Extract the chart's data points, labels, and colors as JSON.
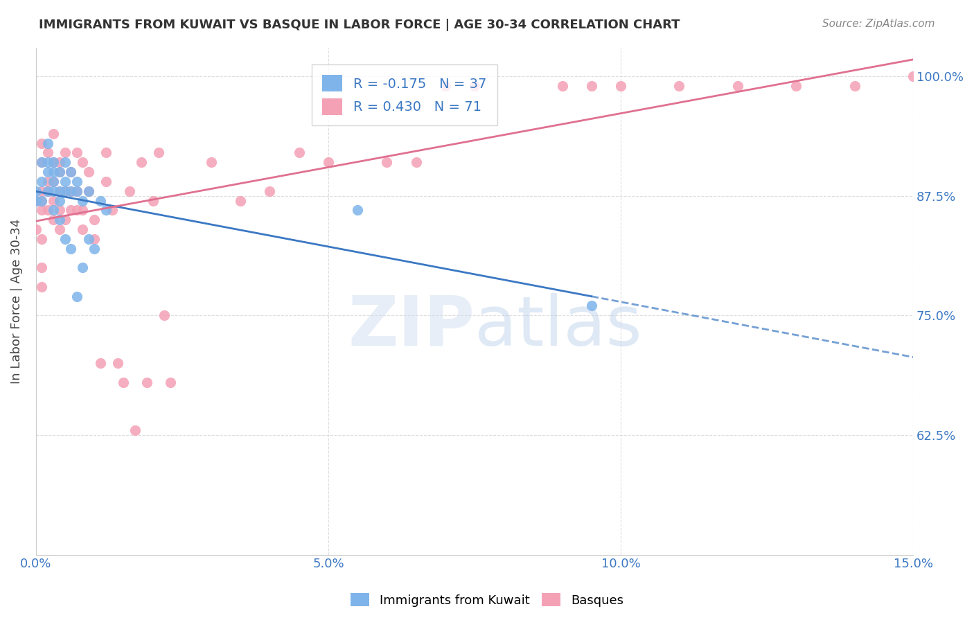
{
  "title": "IMMIGRANTS FROM KUWAIT VS BASQUE IN LABOR FORCE | AGE 30-34 CORRELATION CHART",
  "source": "Source: ZipAtlas.com",
  "ylabel": "In Labor Force | Age 30-34",
  "xlabel": "",
  "xlim": [
    0.0,
    0.15
  ],
  "ylim": [
    0.5,
    1.03
  ],
  "xticks": [
    0.0,
    0.05,
    0.1,
    0.15
  ],
  "xticklabels": [
    "0.0%",
    "5.0%",
    "10.0%",
    "15.0%"
  ],
  "yticks": [
    0.625,
    0.75,
    0.875,
    1.0
  ],
  "yticklabels": [
    "62.5%",
    "75.0%",
    "87.5%",
    "100.0%"
  ],
  "grid_color": "#dddddd",
  "background_color": "#ffffff",
  "kuwait_color": "#7eb4ea",
  "basque_color": "#f4a0b5",
  "kuwait_line_color": "#3B78C3",
  "basque_line_color": "#E07090",
  "kuwait_R": -0.175,
  "kuwait_N": 37,
  "basque_R": 0.43,
  "basque_N": 71,
  "watermark": "ZIPatlas",
  "kuwait_x": [
    0.0,
    0.0,
    0.001,
    0.001,
    0.001,
    0.002,
    0.002,
    0.002,
    0.002,
    0.003,
    0.003,
    0.003,
    0.003,
    0.003,
    0.004,
    0.004,
    0.004,
    0.004,
    0.005,
    0.005,
    0.005,
    0.005,
    0.006,
    0.006,
    0.006,
    0.007,
    0.007,
    0.007,
    0.008,
    0.008,
    0.009,
    0.009,
    0.01,
    0.011,
    0.012,
    0.055,
    0.095
  ],
  "kuwait_y": [
    0.88,
    0.87,
    0.91,
    0.89,
    0.87,
    0.93,
    0.91,
    0.9,
    0.88,
    0.91,
    0.9,
    0.89,
    0.88,
    0.86,
    0.9,
    0.88,
    0.87,
    0.85,
    0.91,
    0.89,
    0.88,
    0.83,
    0.9,
    0.88,
    0.82,
    0.89,
    0.88,
    0.77,
    0.87,
    0.8,
    0.88,
    0.83,
    0.82,
    0.87,
    0.86,
    0.86,
    0.76
  ],
  "basque_x": [
    0.0,
    0.0,
    0.001,
    0.001,
    0.001,
    0.001,
    0.001,
    0.001,
    0.001,
    0.001,
    0.002,
    0.002,
    0.002,
    0.002,
    0.003,
    0.003,
    0.003,
    0.003,
    0.003,
    0.004,
    0.004,
    0.004,
    0.004,
    0.004,
    0.005,
    0.005,
    0.005,
    0.006,
    0.006,
    0.006,
    0.007,
    0.007,
    0.007,
    0.008,
    0.008,
    0.008,
    0.009,
    0.009,
    0.01,
    0.01,
    0.011,
    0.012,
    0.012,
    0.013,
    0.014,
    0.015,
    0.016,
    0.017,
    0.018,
    0.019,
    0.02,
    0.021,
    0.022,
    0.023,
    0.03,
    0.035,
    0.04,
    0.045,
    0.05,
    0.06,
    0.065,
    0.07,
    0.075,
    0.09,
    0.095,
    0.1,
    0.11,
    0.12,
    0.13,
    0.14,
    0.15
  ],
  "basque_y": [
    0.87,
    0.84,
    0.93,
    0.91,
    0.88,
    0.87,
    0.86,
    0.83,
    0.8,
    0.78,
    0.92,
    0.89,
    0.88,
    0.86,
    0.94,
    0.91,
    0.89,
    0.87,
    0.85,
    0.91,
    0.9,
    0.88,
    0.86,
    0.84,
    0.92,
    0.88,
    0.85,
    0.9,
    0.88,
    0.86,
    0.92,
    0.88,
    0.86,
    0.91,
    0.86,
    0.84,
    0.9,
    0.88,
    0.85,
    0.83,
    0.7,
    0.92,
    0.89,
    0.86,
    0.7,
    0.68,
    0.88,
    0.63,
    0.91,
    0.68,
    0.87,
    0.92,
    0.75,
    0.68,
    0.91,
    0.87,
    0.88,
    0.92,
    0.91,
    0.91,
    0.91,
    0.99,
    0.99,
    0.99,
    0.99,
    0.99,
    0.99,
    0.99,
    0.99,
    0.99,
    1.0
  ]
}
